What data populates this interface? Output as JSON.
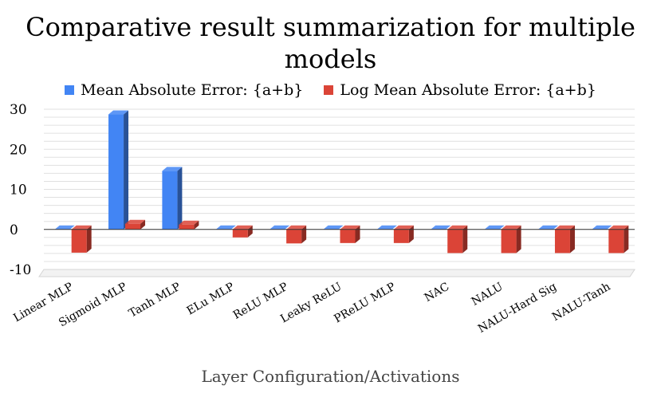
{
  "chart_data": {
    "type": "bar",
    "title": "Comparative result summarization for multiple models",
    "xlabel": "Layer Configuration/Activations",
    "ylabel": "",
    "ylim": [
      -10,
      30
    ],
    "yticks": [
      -10,
      0,
      10,
      20,
      30
    ],
    "grid": true,
    "legend": "top",
    "categories": [
      "Linear MLP",
      "Sigmoid MLP",
      "Tanh MLP",
      "ELu MLP",
      "ReLU MLP",
      "Leaky ReLU",
      "PReLU MLP",
      "NAC",
      "NALU",
      "NALU-Hard Sig",
      "NALU-Tanh"
    ],
    "series": [
      {
        "name": "Mean Absolute Error: {a+b}",
        "color": "#4285F4",
        "values": [
          0,
          28.7,
          14.6,
          0,
          0,
          0,
          0,
          0,
          0,
          0,
          0
        ]
      },
      {
        "name": "Log Mean Absolute Error: {a+b}",
        "color": "#DB4437",
        "values": [
          -5.8,
          1.4,
          1.2,
          -2.0,
          -3.5,
          -3.4,
          -3.4,
          -5.9,
          -5.9,
          -5.9,
          -5.9
        ]
      }
    ]
  }
}
